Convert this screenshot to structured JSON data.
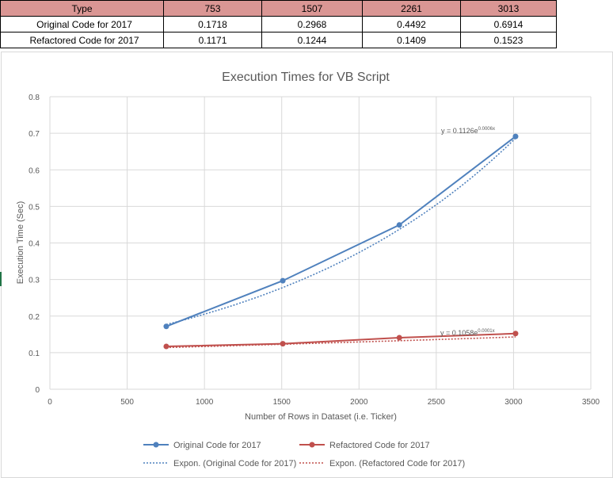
{
  "table": {
    "header": [
      "Type",
      "753",
      "1507",
      "2261",
      "3013"
    ],
    "rows": [
      [
        "Original Code for 2017",
        "0.1718",
        "0.2968",
        "0.4492",
        "0.6914"
      ],
      [
        "Refactored Code for 2017",
        "0.1171",
        "0.1244",
        "0.1409",
        "0.1523"
      ]
    ]
  },
  "chart_data": {
    "type": "scatter",
    "title": "Execution Times for VB  Script",
    "xlabel": "Number of Rows in Dataset (i.e. Ticker)",
    "ylabel": "Execution Time (Sec)",
    "xlim": [
      0,
      3500
    ],
    "ylim": [
      0,
      0.8
    ],
    "x_ticks": [
      "0",
      "500",
      "1000",
      "1500",
      "2000",
      "2500",
      "3000",
      "3500"
    ],
    "y_ticks": [
      "0",
      "0.1",
      "0.2",
      "0.3",
      "0.4",
      "0.5",
      "0.6",
      "0.7",
      "0.8"
    ],
    "grid": true,
    "legend_position": "bottom",
    "series": [
      {
        "name": "Original Code for 2017",
        "color": "#4f81bd",
        "x": [
          753,
          1507,
          2261,
          3013
        ],
        "y": [
          0.1718,
          0.2968,
          0.4492,
          0.6914
        ]
      },
      {
        "name": "Refactored Code for 2017",
        "color": "#c0504d",
        "x": [
          753,
          1507,
          2261,
          3013
        ],
        "y": [
          0.1171,
          0.1244,
          0.1409,
          0.1523
        ]
      }
    ],
    "trendlines": [
      {
        "name": "Expon. (Original Code for 2017)",
        "color": "#4f81bd",
        "a": 0.1126,
        "b": 0.0006,
        "eq_base": "y = 0.1126e",
        "eq_exp": "0.0006x"
      },
      {
        "name": "Expon. (Refactored Code for 2017)",
        "color": "#c0504d",
        "a": 0.1058,
        "b": 0.0001,
        "eq_base": "y = 0.1058e",
        "eq_exp": "0.0001x"
      }
    ]
  }
}
